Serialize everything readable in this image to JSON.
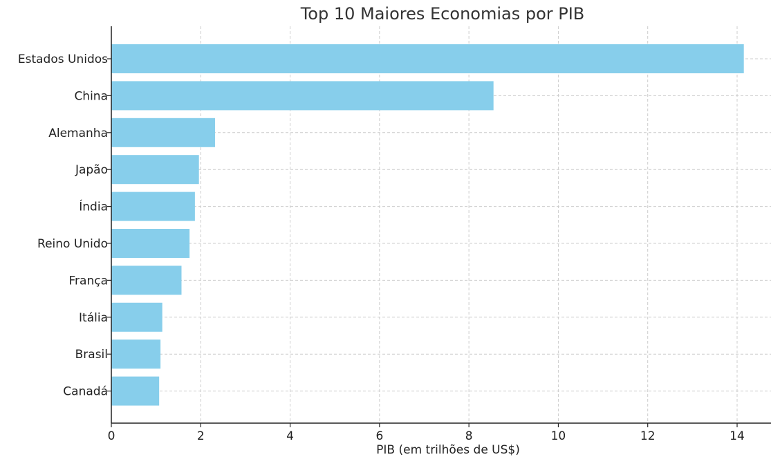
{
  "chart_data": {
    "type": "bar",
    "orientation": "horizontal",
    "title": "Top 10 Maiores Economias por PIB",
    "xlabel": "PIB (em trilhões de US$)",
    "ylabel": "",
    "categories": [
      "Estados Unidos",
      "China",
      "Alemanha",
      "Japão",
      "Índia",
      "Reino Unido",
      "França",
      "Itália",
      "Brasil",
      "Canadá"
    ],
    "values": [
      14.15,
      8.55,
      2.32,
      1.96,
      1.87,
      1.75,
      1.57,
      1.14,
      1.1,
      1.07
    ],
    "xlim": [
      0,
      14.4
    ],
    "xticks": [
      0,
      2,
      4,
      6,
      8,
      10,
      12,
      14
    ],
    "grid": true,
    "bar_color": "#87ceeb"
  }
}
